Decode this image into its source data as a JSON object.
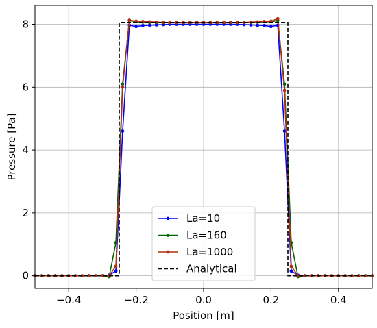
{
  "chart_data": {
    "type": "line",
    "title": "",
    "xlabel": "Position [m]",
    "ylabel": "Pressure [Pa]",
    "xlim": [
      -0.5,
      0.5
    ],
    "ylim": [
      -0.4,
      8.6
    ],
    "xticks": [
      -0.4,
      -0.2,
      0.0,
      0.2,
      0.4
    ],
    "xtick_labels": [
      "−0.4",
      "−0.2",
      "0.0",
      "0.2",
      "0.4"
    ],
    "yticks": [
      0,
      2,
      4,
      6,
      8
    ],
    "ytick_labels": [
      "0",
      "2",
      "4",
      "6",
      "8"
    ],
    "grid": true,
    "legend_position": "lower-center",
    "series": [
      {
        "name": "La=10",
        "color": "#0000ff",
        "marker": "circle",
        "x": [
          -0.5,
          -0.48,
          -0.46,
          -0.44,
          -0.42,
          -0.4,
          -0.38,
          -0.36,
          -0.34,
          -0.32,
          -0.3,
          -0.28,
          -0.26,
          -0.24,
          -0.22,
          -0.2,
          -0.18,
          -0.16,
          -0.14,
          -0.12,
          -0.1,
          -0.08,
          -0.06,
          -0.04,
          -0.02,
          0.0,
          0.02,
          0.04,
          0.06,
          0.08,
          0.1,
          0.12,
          0.14,
          0.16,
          0.18,
          0.2,
          0.22,
          0.24,
          0.26,
          0.28,
          0.3,
          0.32,
          0.34,
          0.36,
          0.38,
          0.4,
          0.42,
          0.44,
          0.46,
          0.48,
          0.5
        ],
        "y": [
          0,
          0,
          0,
          0,
          0,
          0,
          0,
          0,
          0,
          0,
          0,
          0.02,
          0.15,
          4.6,
          7.97,
          7.93,
          7.96,
          7.97,
          7.98,
          7.99,
          8.0,
          8.0,
          8.0,
          8.0,
          8.0,
          8.0,
          8.0,
          8.0,
          8.0,
          8.0,
          8.0,
          7.99,
          7.98,
          7.97,
          7.96,
          7.93,
          7.97,
          4.6,
          0.15,
          0.02,
          0,
          0,
          0,
          0,
          0,
          0,
          0,
          0,
          0,
          0,
          0
        ]
      },
      {
        "name": "La=160",
        "color": "#006400",
        "marker": "circle",
        "x": [
          -0.5,
          -0.48,
          -0.46,
          -0.44,
          -0.42,
          -0.4,
          -0.38,
          -0.36,
          -0.34,
          -0.32,
          -0.3,
          -0.28,
          -0.26,
          -0.24,
          -0.22,
          -0.2,
          -0.18,
          -0.16,
          -0.14,
          -0.12,
          -0.1,
          -0.08,
          -0.06,
          -0.04,
          -0.02,
          0.0,
          0.02,
          0.04,
          0.06,
          0.08,
          0.1,
          0.12,
          0.14,
          0.16,
          0.18,
          0.2,
          0.22,
          0.24,
          0.26,
          0.28,
          0.3,
          0.32,
          0.34,
          0.36,
          0.38,
          0.4,
          0.42,
          0.44,
          0.46,
          0.48,
          0.5
        ],
        "y": [
          0,
          0,
          0,
          0,
          0,
          0,
          0,
          0,
          0,
          0,
          0,
          -0.03,
          1.05,
          6.1,
          8.12,
          8.08,
          8.07,
          8.06,
          8.05,
          8.05,
          8.05,
          8.05,
          8.05,
          8.05,
          8.05,
          8.05,
          8.05,
          8.05,
          8.05,
          8.05,
          8.05,
          8.05,
          8.06,
          8.07,
          8.08,
          8.08,
          8.12,
          6.1,
          1.05,
          -0.03,
          0,
          0,
          0,
          0,
          0,
          0,
          0,
          0,
          0,
          0,
          0
        ]
      },
      {
        "name": "La=1000",
        "color": "#b03010",
        "marker": "circle",
        "x": [
          -0.5,
          -0.48,
          -0.46,
          -0.44,
          -0.42,
          -0.4,
          -0.38,
          -0.36,
          -0.34,
          -0.32,
          -0.3,
          -0.28,
          -0.26,
          -0.24,
          -0.22,
          -0.2,
          -0.18,
          -0.16,
          -0.14,
          -0.12,
          -0.1,
          -0.08,
          -0.06,
          -0.04,
          -0.02,
          0.0,
          0.02,
          0.04,
          0.06,
          0.08,
          0.1,
          0.12,
          0.14,
          0.16,
          0.18,
          0.2,
          0.22,
          0.24,
          0.26,
          0.28,
          0.3,
          0.32,
          0.34,
          0.36,
          0.38,
          0.4,
          0.42,
          0.44,
          0.46,
          0.48,
          0.5
        ],
        "y": [
          0,
          0,
          0,
          0,
          0,
          0,
          0,
          0,
          0,
          0,
          0,
          0.0,
          0.3,
          6.0,
          8.13,
          8.1,
          8.09,
          8.08,
          8.07,
          8.06,
          8.06,
          8.06,
          8.06,
          8.06,
          8.06,
          8.06,
          8.06,
          8.06,
          8.06,
          8.06,
          8.06,
          8.06,
          8.07,
          8.08,
          8.09,
          8.1,
          8.18,
          5.9,
          0.3,
          0.0,
          0,
          0,
          0,
          0,
          0,
          0,
          0,
          0,
          0,
          0,
          0
        ]
      },
      {
        "name": "Analytical",
        "color": "#000000",
        "marker": "none",
        "dashed": true,
        "x": [
          -0.5,
          -0.25,
          -0.25,
          0.25,
          0.25,
          0.5
        ],
        "y": [
          0,
          0,
          8.06,
          8.06,
          0,
          0
        ]
      }
    ]
  }
}
